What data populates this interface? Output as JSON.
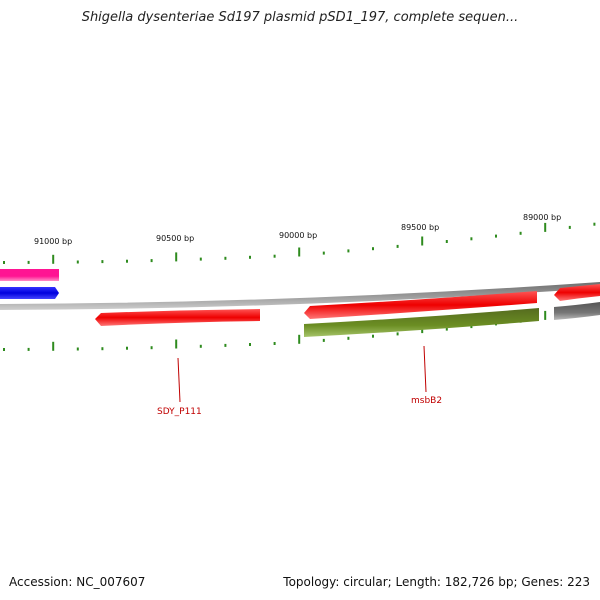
{
  "title": "Shigella dysenteriae Sd197 plasmid pSD1_197, complete sequen...",
  "footer": {
    "accession": "Accession: NC_007607",
    "summary": "Topology: circular; Length: 182,726 bp; Genes: 223"
  },
  "ticks": [
    {
      "label": "91000 bp",
      "pos": 91000
    },
    {
      "label": "90500 bp",
      "pos": 90500
    },
    {
      "label": "90000 bp",
      "pos": 90000
    },
    {
      "label": "89500 bp",
      "pos": 89500
    },
    {
      "label": "89000 bp",
      "pos": 89000
    }
  ],
  "gene_labels": [
    {
      "name": "SDY_P111"
    },
    {
      "name": "msbB2"
    }
  ],
  "colors": {
    "backbone": "#8a8a8a",
    "gene_red": "#ee0000",
    "gene_green": "#6b8e23",
    "gene_pink": "#ff1493",
    "gene_blue": "#0000ee",
    "gene_gray": "#777777",
    "tick": "#2e8b1e",
    "label": "#c00000"
  }
}
